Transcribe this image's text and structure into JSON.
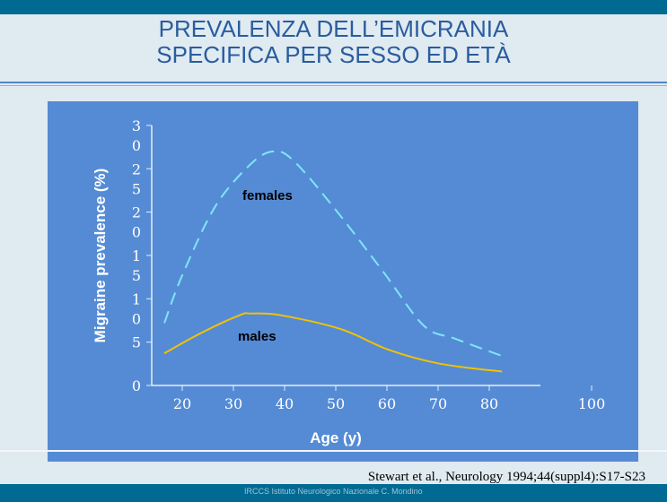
{
  "title": {
    "line1": "PREVALENZA DELL’EMICRANIA",
    "line2": "SPECIFICA PER SESSO ED ETÀ"
  },
  "citation": "Stewart et al., Neurology 1994;44(suppl4):S17-S23",
  "institution": "IRCCS Istituto Neurologico Nazionale C. Mondino",
  "chart_data": {
    "type": "line",
    "title": "",
    "xlabel": "Age (y)",
    "ylabel": "Migraine prevalence (%)",
    "xlim": [
      14,
      100
    ],
    "ylim": [
      0,
      30
    ],
    "xticks": [
      "20",
      "30",
      "40",
      "50",
      "60",
      "70",
      "80",
      "100"
    ],
    "yticks": [
      "0",
      "5",
      "10",
      "15",
      "20",
      "25",
      "30"
    ],
    "series": [
      {
        "name": "females",
        "color": "#7fe6f5",
        "style": "dashed",
        "x": [
          16.5,
          20,
          26.5,
          33.5,
          37.9,
          41.8,
          49.8,
          59.3,
          67.2,
          73.3,
          82.5
        ],
        "y": [
          7.2,
          12.7,
          20.7,
          25.6,
          27,
          25.9,
          20.4,
          13.1,
          6.9,
          5.4,
          3.4
        ]
      },
      {
        "name": "males",
        "color": "#f2c200",
        "style": "solid",
        "x": [
          16.5,
          23.5,
          31.2,
          33.5,
          39.3,
          51,
          60.4,
          70.4,
          82.5
        ],
        "y": [
          3.7,
          6.0,
          8.1,
          8.3,
          8.1,
          6.5,
          4.1,
          2.5,
          1.6
        ]
      }
    ]
  }
}
